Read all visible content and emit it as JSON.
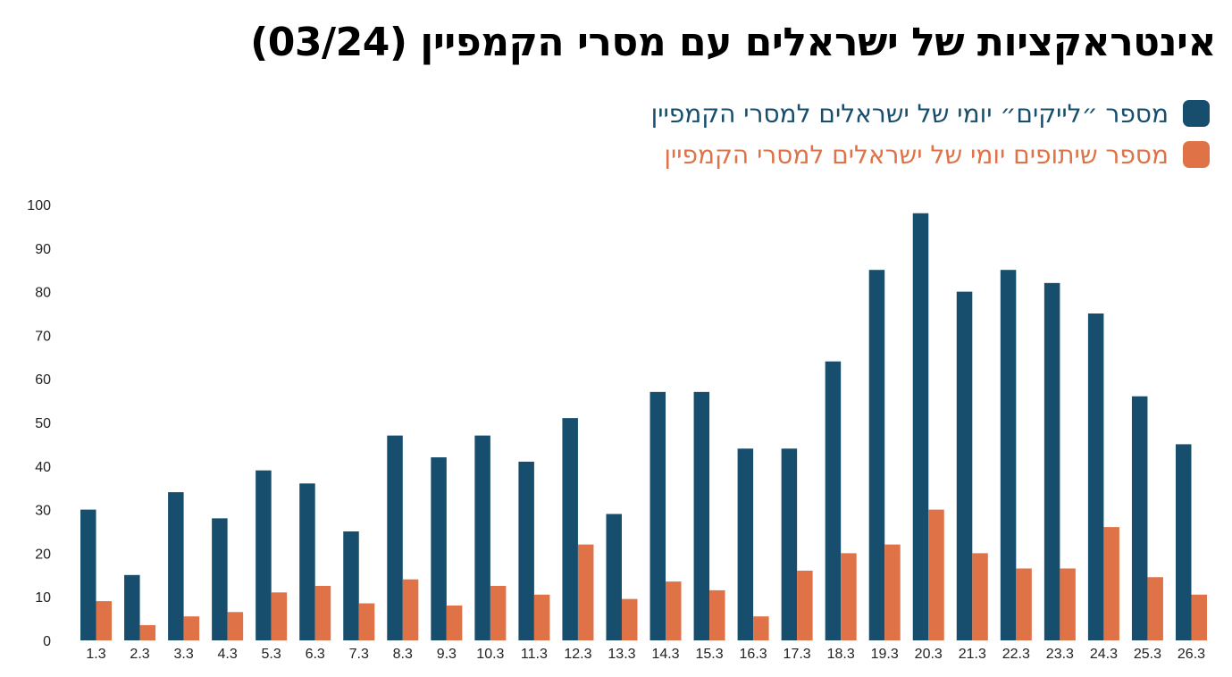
{
  "chart_data": {
    "type": "bar",
    "title": "אינטראקציות של ישראלים עם מסרי הקמפיין  (03/24)",
    "xlabel": "",
    "ylabel": "",
    "ylim": [
      0,
      100
    ],
    "yticks": [
      0,
      10,
      20,
      30,
      40,
      50,
      60,
      70,
      80,
      90,
      100
    ],
    "grid": false,
    "legend_position": "top-right",
    "categories": [
      "1.3",
      "2.3",
      "3.3",
      "4.3",
      "5.3",
      "6.3",
      "7.3",
      "8.3",
      "9.3",
      "10.3",
      "11.3",
      "12.3",
      "13.3",
      "14.3",
      "15.3",
      "16.3",
      "17.3",
      "18.3",
      "19.3",
      "20.3",
      "21.3",
      "22.3",
      "23.3",
      "24.3",
      "25.3",
      "26.3"
    ],
    "series": [
      {
        "name": "מספר ״לייקים״ יומי של ישראלים למסרי הקמפיין",
        "color": "#174e6d",
        "values": [
          30,
          15,
          34,
          28,
          39,
          36,
          25,
          47,
          42,
          47,
          41,
          51,
          29,
          57,
          57,
          44,
          44,
          64,
          85,
          98,
          80,
          85,
          82,
          75,
          56,
          45
        ]
      },
      {
        "name": "מספר שיתופים יומי של ישראלים למסרי הקמפיין",
        "color": "#df7247",
        "values": [
          9,
          3.5,
          5.5,
          6.5,
          11,
          12.5,
          8.5,
          14,
          8,
          12.5,
          10.5,
          22,
          9.5,
          13.5,
          11.5,
          5.5,
          16,
          20,
          22,
          30,
          20,
          16.5,
          16.5,
          26,
          14.5,
          10.5
        ]
      }
    ]
  }
}
